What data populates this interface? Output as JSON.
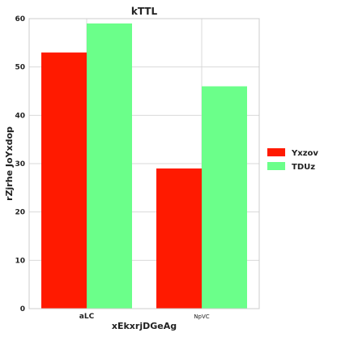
{
  "chart_data": {
    "type": "bar",
    "title": "kTTL",
    "xlabel": "xEkxrjDGeAg",
    "ylabel": "rZjrhe JoYxdop",
    "categories": [
      "aLC",
      "NpVC"
    ],
    "series": [
      {
        "name": "Yxzov",
        "values": [
          53,
          29
        ],
        "color": "#ff1a00"
      },
      {
        "name": "TDUz",
        "values": [
          59,
          46
        ],
        "color": "#6bff8a"
      }
    ],
    "ylim": [
      0,
      60
    ],
    "yticks": [
      0,
      10,
      20,
      30,
      40,
      50,
      60
    ],
    "grid": true,
    "legend_position": "right"
  }
}
